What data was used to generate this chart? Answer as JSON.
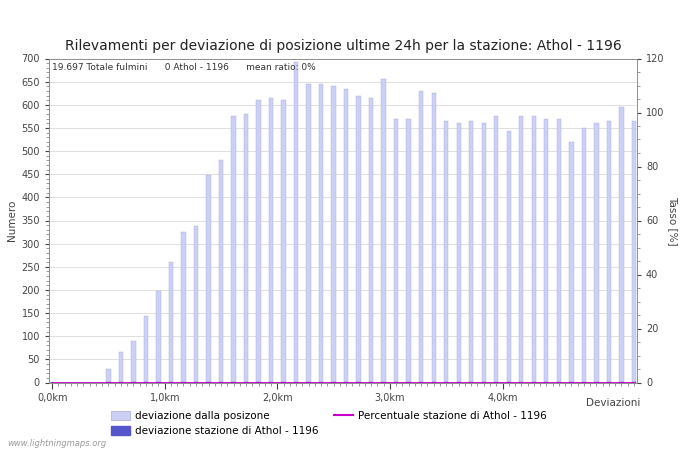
{
  "title": "Rilevamenti per deviazione di posizione ultime 24h per la stazione: Athol - 1196",
  "annotation": "19.697 Totale fulmini      0 Athol - 1196      mean ratio: 0%",
  "ylabel_left": "Numero",
  "ylabel_right": "Tasso [%]",
  "xlabel_right": "Deviazioni",
  "watermark": "www.lightningmaps.org",
  "ylim_left": [
    0,
    700
  ],
  "ylim_right": [
    0,
    120
  ],
  "bar_color": "#cdd0f5",
  "bar_edge_color": "#aaaadd",
  "station_bar_color": "#5555cc",
  "line_color": "#cc00cc",
  "bg_color": "#ffffff",
  "grid_color": "#bbbbbb",
  "title_fontsize": 10,
  "axis_fontsize": 7.5,
  "tick_fontsize": 7,
  "legend_fontsize": 7.5,
  "bar_values": [
    2,
    0,
    0,
    0,
    0,
    0,
    0,
    0,
    0,
    30,
    0,
    65,
    0,
    90,
    0,
    143,
    0,
    197,
    0,
    260,
    0,
    325,
    0,
    338,
    0,
    448,
    0,
    480,
    0,
    575,
    0,
    580,
    0,
    610,
    0,
    615,
    0,
    610,
    0,
    693,
    0,
    645,
    0,
    645,
    0,
    640,
    0,
    635,
    0,
    620,
    0,
    615,
    0,
    655,
    0,
    570,
    0,
    570,
    0,
    630,
    0,
    625,
    0,
    565,
    0,
    560,
    0,
    565,
    0,
    560,
    0,
    575,
    0,
    543,
    0,
    575,
    0,
    575,
    0,
    570,
    0,
    570,
    0,
    520,
    0,
    550,
    0,
    560,
    0,
    565,
    0,
    595,
    0,
    565
  ],
  "station_values": [
    0,
    0,
    0,
    0,
    0,
    0,
    0,
    0,
    0,
    1,
    0,
    1,
    0,
    1,
    0,
    1,
    0,
    1,
    0,
    1,
    0,
    1,
    0,
    1,
    0,
    1,
    0,
    1,
    0,
    1,
    0,
    1,
    0,
    1,
    0,
    1,
    0,
    1,
    0,
    1,
    0,
    1,
    0,
    1,
    0,
    1,
    0,
    1,
    0,
    1,
    0,
    1,
    0,
    1,
    0,
    1,
    0,
    1,
    0,
    1,
    0,
    1,
    0,
    1,
    0,
    1,
    0,
    1,
    0,
    1,
    0,
    1,
    0,
    1,
    0,
    1,
    0,
    1,
    0,
    1,
    0,
    1,
    0,
    1,
    0,
    1,
    0,
    1,
    0,
    1,
    0,
    1,
    0,
    1
  ],
  "km_tick_positions": [
    0,
    18,
    36,
    54,
    72
  ],
  "km_tick_labels": [
    "0,0km",
    "1,0km",
    "2,0km",
    "3,0km",
    "4,0km"
  ]
}
